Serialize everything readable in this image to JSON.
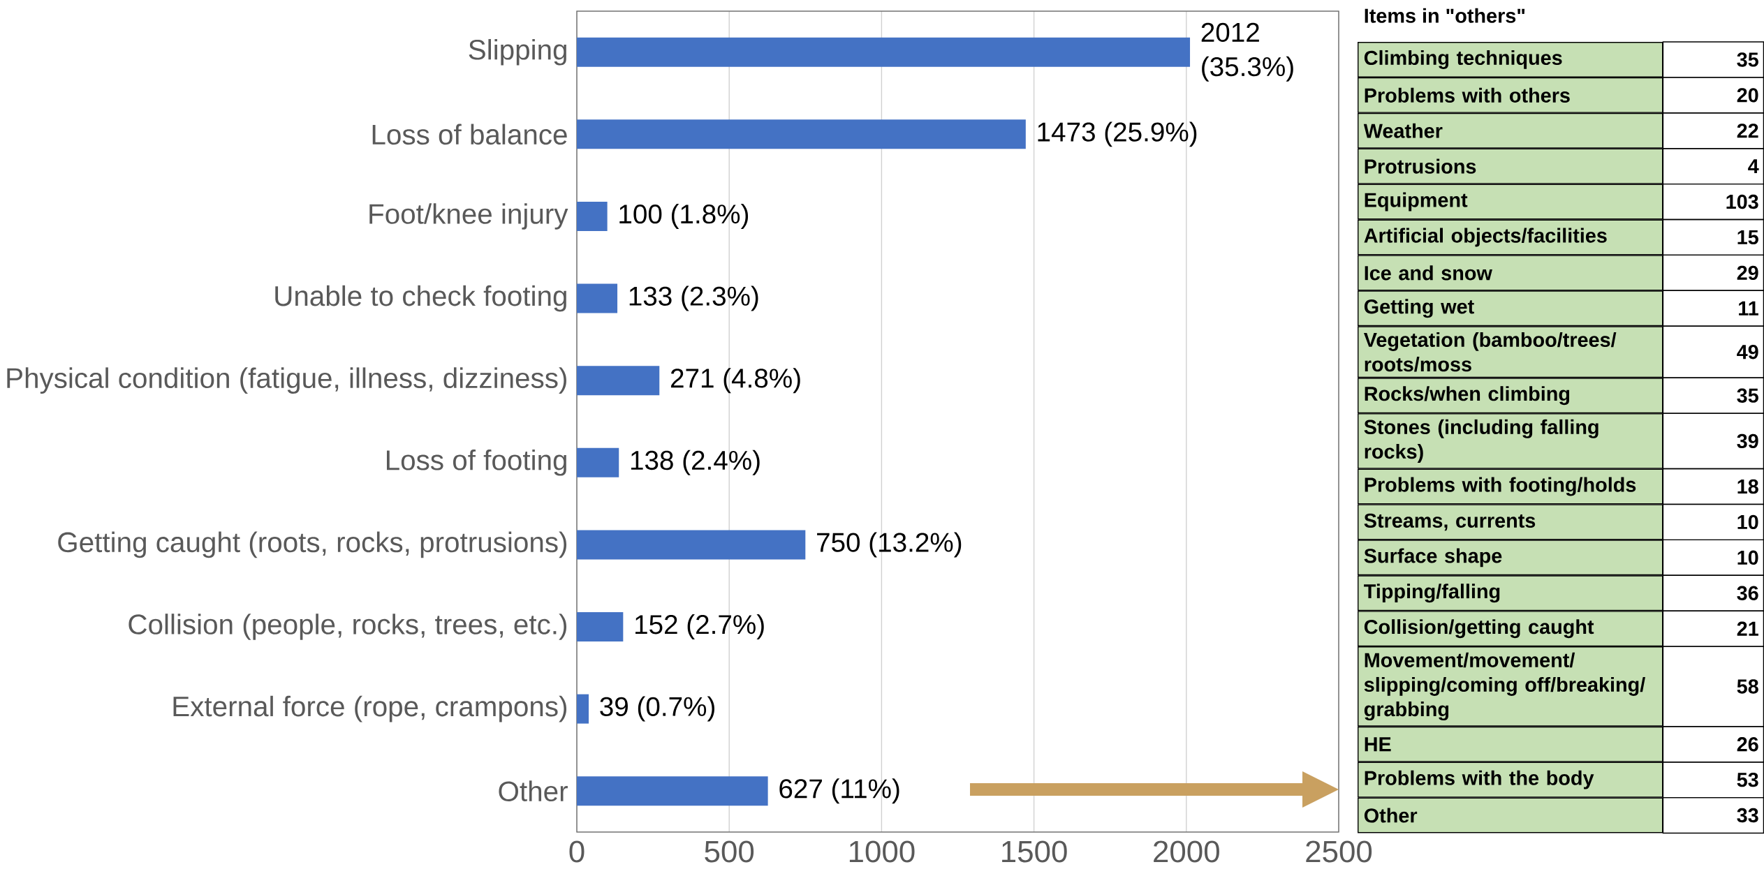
{
  "chart_data": [
    {
      "type": "bar",
      "orientation": "horizontal",
      "categories": [
        "Slipping",
        "Loss of balance",
        "Foot/knee injury",
        "Unable to check footing",
        "Physical condition (fatigue, illness, dizziness)",
        "Loss of footing",
        "Getting caught (roots, rocks, protrusions)",
        "Collision (people, rocks, trees, etc.)",
        "External force (rope, crampons)",
        "Other"
      ],
      "values": [
        2012,
        1473,
        100,
        133,
        271,
        138,
        750,
        152,
        39,
        627
      ],
      "value_labels": [
        "2012 (35.3%)",
        "1473 (25.9%)",
        "100  (1.8%)",
        "133  (2.3%)",
        "271   (4.8%)",
        "138  (2.4%)",
        "750  (13.2%)",
        "152  (2.7%)",
        "39  (0.7%)",
        "627 (11%)"
      ],
      "color": "#4472c4",
      "xlim": [
        0,
        2500
      ],
      "xticks": [
        0,
        500,
        1000,
        1500,
        2000,
        2500
      ],
      "grid": "x"
    },
    {
      "type": "other",
      "title": "Items in \"others\"",
      "color": "#c6e0b4",
      "data_labels": true,
      "categories": [
        "Climbing techniques",
        "Problems with others",
        "Weather",
        "Protrusions",
        "Equipment",
        "Artificial objects/facilities",
        "Ice and snow",
        "Getting wet",
        "Vegetation (bamboo/trees/roots/moss",
        "Rocks/when climbing",
        "Stones (including falling rocks)",
        "Problems with footing/holds",
        "Streams, currents",
        "Surface shape",
        "Tipping/falling",
        "Collision/getting caught",
        "Movement/movement/slipping/coming off/breaking/grabbing",
        "HE",
        "Problems with the body",
        "Other"
      ],
      "values": [
        35,
        20,
        22,
        4,
        103,
        15,
        29,
        11,
        49,
        35,
        39,
        18,
        10,
        10,
        36,
        21,
        58,
        26,
        53,
        33
      ]
    }
  ]
}
